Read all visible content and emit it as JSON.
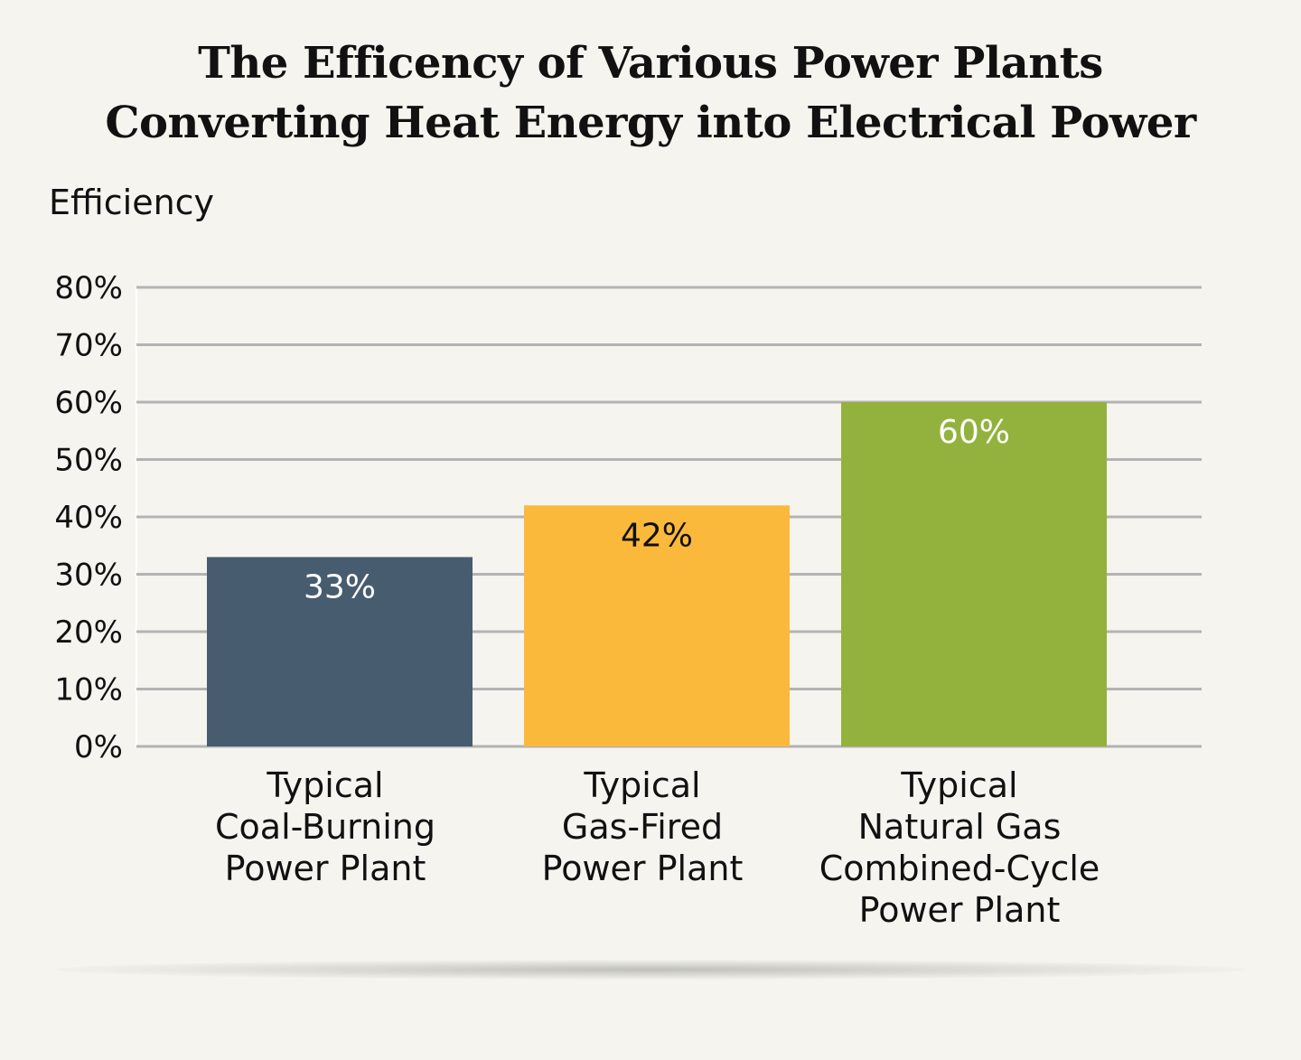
{
  "chart_data": {
    "type": "bar",
    "title": "The Efficency of Various Power Plants",
    "subtitle": "Converting Heat Energy into Electrical Power",
    "ylabel": "Efficiency",
    "xlabel": "",
    "ylim": [
      0,
      80
    ],
    "yticks": [
      0,
      10,
      20,
      30,
      40,
      50,
      60,
      70,
      80
    ],
    "ytick_labels": [
      "0%",
      "10%",
      "20%",
      "30%",
      "40%",
      "50%",
      "60%",
      "70%",
      "80%"
    ],
    "grid": true,
    "categories": [
      "Typical Coal-Burning Power Plant",
      "Typical Gas-Fired Power Plant",
      "Typical Natural Gas Combined-Cycle Power Plant"
    ],
    "category_lines": [
      [
        "Typical",
        "Coal-Burning",
        "Power Plant"
      ],
      [
        "Typical",
        "Gas-Fired",
        "Power Plant"
      ],
      [
        "Typical",
        "Natural Gas",
        "Combined-Cycle",
        "Power Plant"
      ]
    ],
    "values": [
      33,
      42,
      60
    ],
    "value_labels": [
      "33%",
      "42%",
      "60%"
    ],
    "colors": [
      "#475c6f",
      "#fbb93c",
      "#93b23d"
    ],
    "label_colors": [
      "#ffffff",
      "#111111",
      "#ffffff"
    ],
    "grid_color": "#b3b3b3"
  }
}
